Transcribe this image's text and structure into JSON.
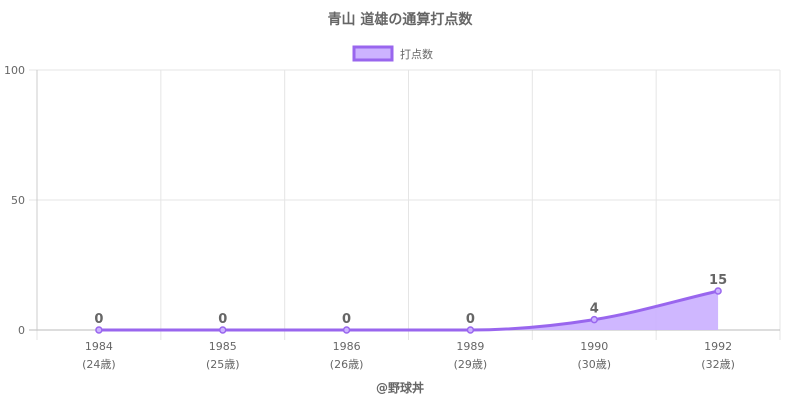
{
  "chart_data": {
    "type": "area",
    "title": "青山 道雄の通算打点数",
    "legend": {
      "label": "打点数",
      "position": "top"
    },
    "categories": [
      "1984",
      "1985",
      "1986",
      "1989",
      "1990",
      "1992"
    ],
    "category_sublabels": [
      "(24歳)",
      "(25歳)",
      "(26歳)",
      "(29歳)",
      "(30歳)",
      "(32歳)"
    ],
    "series": [
      {
        "name": "打点数",
        "values": [
          0,
          0,
          0,
          0,
          4,
          15
        ]
      }
    ],
    "ylim": [
      0,
      100
    ],
    "yticks": [
      0,
      50,
      100
    ],
    "grid": true,
    "colors": {
      "line": "#9966EE",
      "fill": "#CCB3FF",
      "grid": "#e5e5e5",
      "text": "#666666"
    }
  },
  "footer": {
    "credit": "@野球丼"
  }
}
